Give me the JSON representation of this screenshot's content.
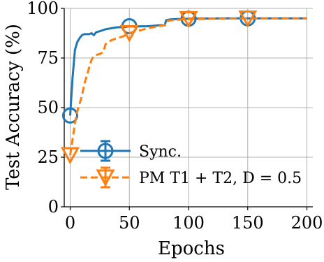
{
  "chart_data": {
    "type": "line",
    "xlabel": "Epochs",
    "ylabel": "Test Accuracy (%)",
    "xlim": [
      -5,
      205
    ],
    "ylim": [
      0,
      100
    ],
    "xticks": [
      0,
      50,
      100,
      150,
      200
    ],
    "yticks": [
      0,
      25,
      50,
      75,
      100
    ],
    "grid": true,
    "legend_position": "bottom-right",
    "series": [
      {
        "name": "Sync.",
        "color": "#1f77b4",
        "line_style": "solid",
        "marker": "circle",
        "x": [
          0,
          2,
          4,
          6,
          8,
          10,
          12,
          14,
          16,
          18,
          20,
          22,
          25,
          30,
          35,
          40,
          45,
          50,
          55,
          60,
          65,
          70,
          75,
          80,
          81,
          85,
          90,
          95,
          100,
          110,
          120,
          130,
          140,
          150,
          160,
          170,
          180,
          190,
          200
        ],
        "y": [
          46,
          65,
          79,
          83,
          85,
          86.5,
          87,
          87,
          87,
          87.5,
          86.5,
          88,
          88.5,
          89.5,
          90,
          90.5,
          90.5,
          91,
          90.8,
          91,
          91,
          91.2,
          91.5,
          91.5,
          94,
          94.5,
          94.6,
          94.7,
          94.8,
          94.9,
          94.9,
          95,
          95,
          95,
          95,
          95,
          95,
          95,
          95
        ],
        "marker_x": [
          0,
          50,
          100,
          150
        ],
        "marker_y": [
          46,
          91,
          94.8,
          95
        ]
      },
      {
        "name": "PM T1 + T2, D = 0.5",
        "color": "#ff7f0e",
        "line_style": "dashed",
        "marker": "triangle-down",
        "x": [
          0,
          2,
          4,
          6,
          8,
          10,
          12,
          14,
          16,
          18,
          20,
          22,
          25,
          28,
          30,
          35,
          40,
          45,
          50,
          55,
          60,
          65,
          70,
          75,
          80,
          81,
          85,
          90,
          95,
          100,
          110,
          120,
          130,
          140,
          150,
          160,
          170,
          180,
          190,
          200
        ],
        "y": [
          26,
          34,
          42,
          48,
          52,
          56,
          62,
          66,
          70,
          74,
          76,
          76.5,
          77,
          78,
          82,
          84,
          85,
          86,
          87.5,
          88.5,
          89,
          90,
          90.5,
          91,
          91.5,
          93.5,
          94,
          94.2,
          94.5,
          94.6,
          94.7,
          94.8,
          94.8,
          94.9,
          94.9,
          95,
          95,
          95,
          95,
          95
        ],
        "marker_x": [
          0,
          50,
          100,
          150
        ],
        "marker_y": [
          26,
          87.5,
          94.6,
          94.9
        ]
      }
    ]
  }
}
